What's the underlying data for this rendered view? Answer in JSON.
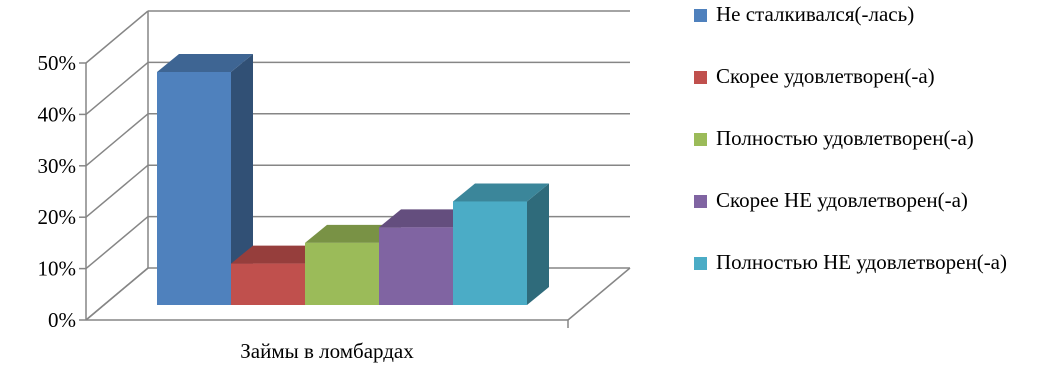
{
  "chart_data": {
    "type": "bar",
    "categories": [
      "Займы в ломбардах"
    ],
    "series": [
      {
        "name": "Не сталкивался(-лась)",
        "values": [
          45
        ],
        "color": "#4F81BD"
      },
      {
        "name": "Скорее удовлетворен(-а)",
        "values": [
          8
        ],
        "color": "#C0504D"
      },
      {
        "name": "Полностью удовлетворен(-а)",
        "values": [
          12
        ],
        "color": "#9BBB59"
      },
      {
        "name": "Скорее НЕ удовлетворен(-а)",
        "values": [
          15
        ],
        "color": "#8064A2"
      },
      {
        "name": "Полностью НЕ удовлетворен(-а)",
        "values": [
          20
        ],
        "color": "#4BACC6"
      }
    ],
    "y_ticks": [
      "0%",
      "10%",
      "20%",
      "30%",
      "40%",
      "50%"
    ],
    "ylim": [
      0,
      50
    ],
    "grid": true,
    "legend_position": "right",
    "three_d": true
  }
}
